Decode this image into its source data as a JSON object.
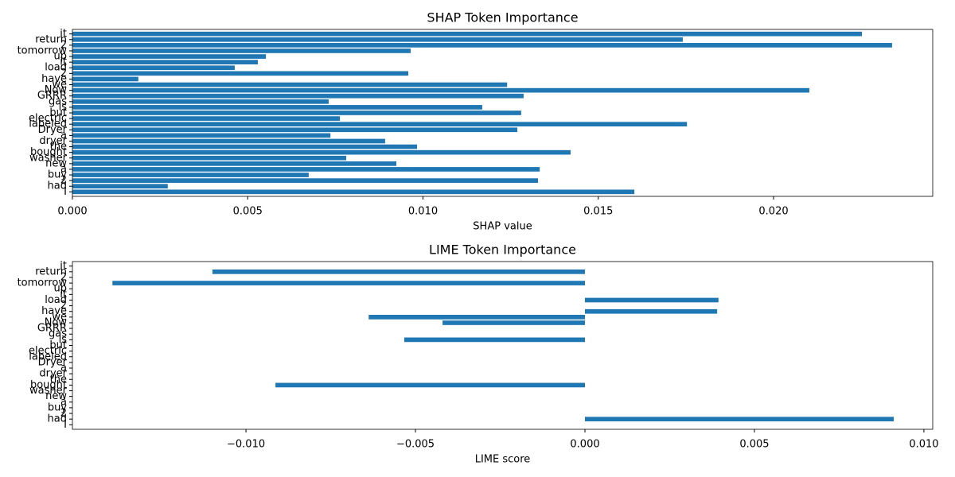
{
  "chart_data": [
    {
      "type": "barh",
      "title": "SHAP Token Importance",
      "xlabel": "SHAP value",
      "color": "#1f77b4",
      "categories": [
        "I",
        "had",
        "2",
        "buy",
        "a",
        "new",
        "washer",
        "bought",
        "the",
        "dryer",
        "a",
        "Dryer",
        "labeled",
        "electric",
        "but",
        "is",
        "gas",
        "GRRR",
        "Now",
        "we",
        "have",
        "2",
        "load",
        "it",
        "up",
        "tomorrow",
        "2",
        "return",
        "it"
      ],
      "values": [
        0.01603,
        0.00272,
        0.01328,
        0.00674,
        0.01333,
        0.00924,
        0.00781,
        0.01421,
        0.00983,
        0.00892,
        0.00736,
        0.01269,
        0.01753,
        0.00763,
        0.0128,
        0.01169,
        0.00731,
        0.01287,
        0.02102,
        0.0124,
        0.00188,
        0.00958,
        0.00463,
        0.00529,
        0.00552,
        0.00965,
        0.02338,
        0.01741,
        0.02252
      ],
      "xlim": [
        0,
        0.02454
      ],
      "xticks": [
        {
          "value": 0,
          "label": "0.000"
        },
        {
          "value": 0.005,
          "label": "0.005"
        },
        {
          "value": 0.01,
          "label": "0.010"
        },
        {
          "value": 0.015,
          "label": "0.015"
        },
        {
          "value": 0.02,
          "label": "0.020"
        }
      ]
    },
    {
      "type": "barh",
      "title": "LIME Token Importance",
      "xlabel": "LIME score",
      "color": "#1f77b4",
      "categories": [
        "I",
        "had",
        "2",
        "buy",
        "a",
        "new",
        "washer",
        "bought",
        "the",
        "dryer",
        "a",
        "Dryer",
        "labeled",
        "electric",
        "but",
        "is",
        "gas",
        "GRRR",
        "Now",
        "we",
        "have",
        "2",
        "load",
        "it",
        "up",
        "tomorrow",
        "2",
        "return",
        "it"
      ],
      "values": [
        0,
        0.00911,
        0,
        0,
        0,
        0,
        0,
        -0.00913,
        0,
        0,
        0,
        0,
        0,
        0,
        0,
        -0.00533,
        0,
        0,
        -0.0042,
        -0.00638,
        0.0039,
        0,
        0.00394,
        0,
        0,
        -0.01394,
        0,
        -0.01099,
        0
      ],
      "xlim": [
        -0.01512,
        0.01026
      ],
      "xticks": [
        {
          "value": -0.01,
          "label": "−0.010"
        },
        {
          "value": -0.005,
          "label": "−0.005"
        },
        {
          "value": 0,
          "label": "0.000"
        },
        {
          "value": 0.005,
          "label": "0.005"
        },
        {
          "value": 0.01,
          "label": "0.010"
        }
      ]
    }
  ]
}
